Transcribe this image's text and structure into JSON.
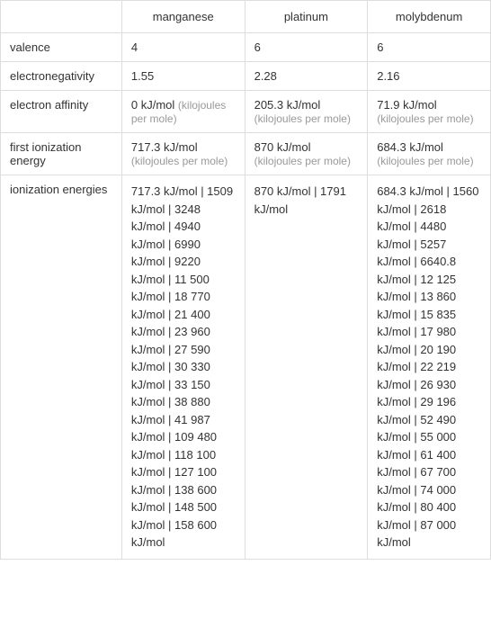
{
  "columns": [
    "manganese",
    "platinum",
    "molybdenum"
  ],
  "rows": [
    {
      "label": "valence",
      "cells": [
        {
          "value": "4"
        },
        {
          "value": "6"
        },
        {
          "value": "6"
        }
      ]
    },
    {
      "label": "electronegativity",
      "cells": [
        {
          "value": "1.55"
        },
        {
          "value": "2.28"
        },
        {
          "value": "2.16"
        }
      ]
    },
    {
      "label": "electron affinity",
      "cells": [
        {
          "value": "0 kJ/mol",
          "unit": "(kilojoules per mole)"
        },
        {
          "value": "205.3 kJ/mol",
          "unit": "(kilojoules per mole)"
        },
        {
          "value": "71.9 kJ/mol",
          "unit": "(kilojoules per mole)"
        }
      ]
    },
    {
      "label": "first ionization energy",
      "cells": [
        {
          "value": "717.3 kJ/mol",
          "unit": "(kilojoules per mole)"
        },
        {
          "value": "870 kJ/mol",
          "unit": "(kilojoules per mole)"
        },
        {
          "value": "684.3 kJ/mol",
          "unit": "(kilojoules per mole)"
        }
      ]
    },
    {
      "label": "ionization energies",
      "cells": [
        {
          "value": "717.3 kJ/mol  |  1509 kJ/mol  |  3248 kJ/mol  |  4940 kJ/mol  |  6990 kJ/mol  |  9220 kJ/mol  |  11 500 kJ/mol  |  18 770 kJ/mol  |  21 400 kJ/mol  |  23 960 kJ/mol  |  27 590 kJ/mol  |  30 330 kJ/mol  |  33 150 kJ/mol  |  38 880 kJ/mol  |  41 987 kJ/mol  |  109 480 kJ/mol  |  118 100 kJ/mol  |  127 100 kJ/mol  |  138 600 kJ/mol  |  148 500 kJ/mol  |  158 600 kJ/mol"
        },
        {
          "value": "870 kJ/mol  |  1791 kJ/mol"
        },
        {
          "value": "684.3 kJ/mol  |  1560 kJ/mol  |  2618 kJ/mol  |  4480 kJ/mol  |  5257 kJ/mol  |  6640.8 kJ/mol  |  12 125 kJ/mol  |  13 860 kJ/mol  |  15 835 kJ/mol  |  17 980 kJ/mol  |  20 190 kJ/mol  |  22 219 kJ/mol  |  26 930 kJ/mol  |  29 196 kJ/mol  |  52 490 kJ/mol  |  55 000 kJ/mol  |  61 400 kJ/mol  |  67 700 kJ/mol  |  74 000 kJ/mol  |  80 400 kJ/mol  |  87 000 kJ/mol"
        }
      ]
    }
  ],
  "colors": {
    "border": "#ddd",
    "text": "#333",
    "unit": "#999"
  }
}
